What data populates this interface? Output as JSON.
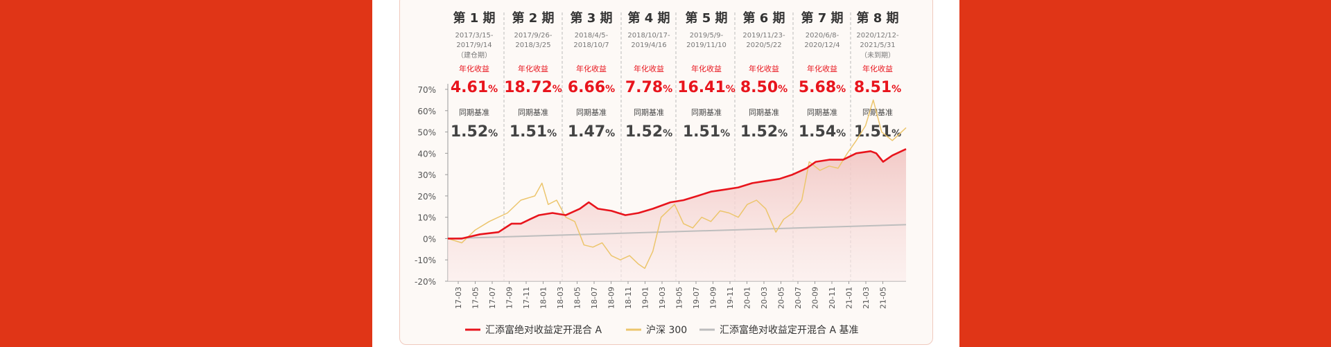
{
  "colors": {
    "background": "#e03517",
    "fund": "#e8141c",
    "index": "#ecc56c",
    "benchmark": "#bdbdbd",
    "highlight": "#e8141c",
    "dark": "#444444"
  },
  "chart_data": {
    "type": "line",
    "title": "",
    "xlabel": "",
    "ylabel": "",
    "ylim": [
      -20,
      70
    ],
    "yticks": [
      "70%",
      "60%",
      "50%",
      "40%",
      "30%",
      "20%",
      "10%",
      "0%",
      "-10%",
      "-20%"
    ],
    "xticks": [
      "17-03",
      "17-05",
      "17-07",
      "17-09",
      "17-11",
      "18-01",
      "18-03",
      "18-05",
      "18-07",
      "18-09",
      "18-11",
      "19-01",
      "19-03",
      "19-05",
      "19-07",
      "19-09",
      "19-11",
      "20-01",
      "20-03",
      "20-05",
      "20-07",
      "20-09",
      "20-11",
      "21-01",
      "21-03",
      "21-05"
    ],
    "legend_position": "bottom",
    "period_ann_label": "年化收益",
    "period_bench_label": "同期基准",
    "periods": [
      {
        "name": "第 1 期",
        "date_line1": "2017/3/15-",
        "date_line2": "2017/9/14",
        "note": "（建仓期）",
        "annual_return": "4.61",
        "benchmark": "1.52"
      },
      {
        "name": "第 2 期",
        "date_line1": "2017/9/26-",
        "date_line2": "2018/3/25",
        "note": "",
        "annual_return": "18.72",
        "benchmark": "1.51"
      },
      {
        "name": "第 3 期",
        "date_line1": "2018/4/5-",
        "date_line2": "2018/10/7",
        "note": "",
        "annual_return": "6.66",
        "benchmark": "1.47"
      },
      {
        "name": "第 4 期",
        "date_line1": "2018/10/17-",
        "date_line2": "2019/4/16",
        "note": "",
        "annual_return": "7.78",
        "benchmark": "1.52"
      },
      {
        "name": "第 5 期",
        "date_line1": "2019/5/9-",
        "date_line2": "2019/11/10",
        "note": "",
        "annual_return": "16.41",
        "benchmark": "1.51"
      },
      {
        "name": "第 6 期",
        "date_line1": "2019/11/23-",
        "date_line2": "2020/5/22",
        "note": "",
        "annual_return": "8.50",
        "benchmark": "1.52"
      },
      {
        "name": "第 7 期",
        "date_line1": "2020/6/8-",
        "date_line2": "2020/12/4",
        "note": "",
        "annual_return": "5.68",
        "benchmark": "1.54"
      },
      {
        "name": "第 8 期",
        "date_line1": "2020/12/12-",
        "date_line2": "2021/5/31",
        "note": "（未到期）",
        "annual_return": "8.51",
        "benchmark": "1.51"
      }
    ],
    "series": [
      {
        "name": "汇添富绝对收益定开混合 A",
        "color": "#e8141c",
        "style": "area",
        "x": [
          "2017-03-15",
          "2017-05-01",
          "2017-07-01",
          "2017-09-01",
          "2017-10-15",
          "2017-11-15",
          "2017-12-15",
          "2018-01-15",
          "2018-03-01",
          "2018-04-15",
          "2018-06-01",
          "2018-07-01",
          "2018-08-01",
          "2018-09-15",
          "2018-11-01",
          "2018-12-15",
          "2019-02-01",
          "2019-04-01",
          "2019-05-15",
          "2019-07-01",
          "2019-08-15",
          "2019-10-01",
          "2019-11-15",
          "2020-01-01",
          "2020-02-15",
          "2020-04-01",
          "2020-05-15",
          "2020-07-01",
          "2020-08-01",
          "2020-09-15",
          "2020-11-01",
          "2020-12-15",
          "2021-02-01",
          "2021-02-20",
          "2021-03-15",
          "2021-04-15",
          "2021-05-31"
        ],
        "values": [
          0,
          0,
          2,
          3,
          7,
          7,
          9,
          11,
          12,
          11,
          14,
          17,
          14,
          13,
          11,
          12,
          14,
          17,
          18,
          20,
          22,
          23,
          24,
          26,
          27,
          28,
          30,
          33,
          36,
          37,
          37,
          40,
          41,
          40,
          36,
          39,
          42
        ]
      },
      {
        "name": "沪深 300",
        "color": "#ecc56c",
        "style": "line",
        "x": [
          "2017-03-15",
          "2017-05-01",
          "2017-06-15",
          "2017-08-01",
          "2017-10-01",
          "2017-11-15",
          "2018-01-01",
          "2018-01-25",
          "2018-02-15",
          "2018-03-15",
          "2018-04-15",
          "2018-05-15",
          "2018-06-15",
          "2018-07-15",
          "2018-08-15",
          "2018-09-15",
          "2018-10-15",
          "2018-11-15",
          "2018-12-15",
          "2019-01-05",
          "2019-02-01",
          "2019-03-01",
          "2019-04-15",
          "2019-05-15",
          "2019-06-15",
          "2019-07-15",
          "2019-08-15",
          "2019-09-15",
          "2019-10-15",
          "2019-11-15",
          "2019-12-15",
          "2020-01-15",
          "2020-02-15",
          "2020-03-20",
          "2020-04-15",
          "2020-05-15",
          "2020-06-15",
          "2020-07-10",
          "2020-08-15",
          "2020-09-15",
          "2020-10-15",
          "2020-11-15",
          "2020-12-15",
          "2021-01-15",
          "2021-02-10",
          "2021-03-10",
          "2021-04-15",
          "2021-05-31"
        ],
        "values": [
          0,
          -2,
          4,
          8,
          12,
          18,
          20,
          26,
          16,
          18,
          10,
          8,
          -3,
          -4,
          -2,
          -8,
          -10,
          -8,
          -12,
          -14,
          -6,
          10,
          16,
          7,
          5,
          10,
          8,
          13,
          12,
          10,
          16,
          18,
          14,
          3,
          9,
          12,
          18,
          36,
          32,
          34,
          33,
          40,
          46,
          53,
          65,
          50,
          46,
          52
        ]
      },
      {
        "name": "汇添富绝对收益定开混合 A 基准",
        "color": "#bdbdbd",
        "style": "line",
        "x": [
          "2017-03-15",
          "2021-05-31"
        ],
        "values": [
          0,
          6.5
        ]
      }
    ]
  }
}
